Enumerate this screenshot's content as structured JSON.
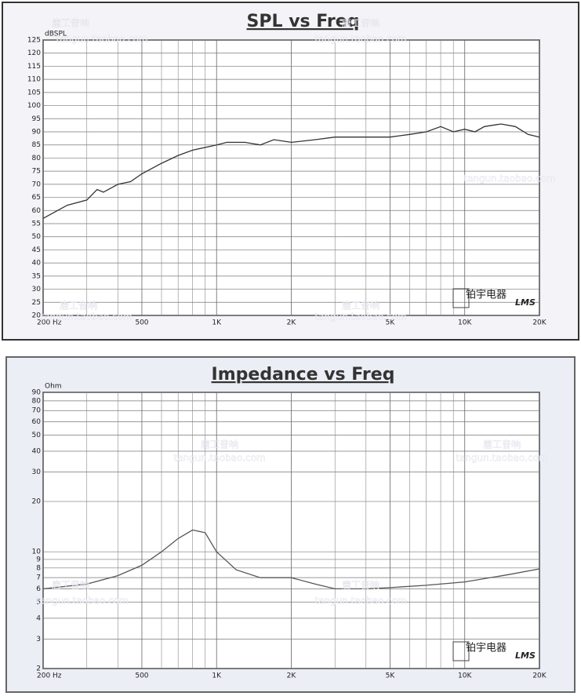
{
  "chart_data": [
    {
      "type": "line",
      "title": "SPL vs Freq",
      "y_label": "dBSPL",
      "xscale": "log",
      "yscale": "linear",
      "grid": true,
      "xlim": [
        200,
        20000
      ],
      "xticks": [
        {
          "value": 200,
          "label": "200 Hz"
        },
        500,
        {
          "value": 1000,
          "label": "1K"
        },
        {
          "value": 2000,
          "label": "2K"
        },
        {
          "value": 5000,
          "label": "5K"
        },
        {
          "value": 10000,
          "label": "10K"
        },
        {
          "value": 20000,
          "label": "20K"
        }
      ],
      "x_minor_ticks": [
        300,
        400,
        600,
        700,
        800,
        900,
        3000,
        4000,
        6000,
        7000,
        8000,
        9000
      ],
      "ylim": [
        20,
        125
      ],
      "yticks": [
        20,
        25,
        30,
        35,
        40,
        45,
        50,
        55,
        60,
        65,
        70,
        75,
        80,
        85,
        90,
        95,
        100,
        105,
        110,
        115,
        120,
        125
      ],
      "x": [
        200,
        250,
        300,
        330,
        350,
        400,
        450,
        500,
        600,
        700,
        800,
        1000,
        1100,
        1300,
        1500,
        1700,
        2000,
        2500,
        3000,
        3500,
        4000,
        5000,
        6000,
        7000,
        8000,
        9000,
        10000,
        11000,
        12000,
        14000,
        16000,
        18000,
        20000
      ],
      "series": [
        {
          "name": "SPL",
          "color": "#333333",
          "values": [
            57,
            62,
            64,
            68,
            67,
            70,
            71,
            74,
            78,
            81,
            83,
            85,
            86,
            86,
            85,
            87,
            86,
            87,
            88,
            88,
            88,
            88,
            89,
            90,
            92,
            90,
            91,
            90,
            92,
            93,
            92,
            89,
            88
          ]
        }
      ],
      "annotations": [
        "唐工音响",
        "tangun.taobao.com",
        "铂宇电器",
        "LMS"
      ]
    },
    {
      "type": "line",
      "title": "Impedance vs Freq",
      "y_label": "Ohm",
      "xscale": "log",
      "yscale": "log",
      "grid": true,
      "xlim": [
        200,
        20000
      ],
      "xticks": [
        {
          "value": 200,
          "label": "200 Hz"
        },
        500,
        {
          "value": 1000,
          "label": "1K"
        },
        {
          "value": 2000,
          "label": "2K"
        },
        {
          "value": 5000,
          "label": "5K"
        },
        {
          "value": 10000,
          "label": "10K"
        },
        {
          "value": 20000,
          "label": "20K"
        }
      ],
      "x_minor_ticks": [
        300,
        400,
        600,
        700,
        800,
        900,
        3000,
        4000,
        6000,
        7000,
        8000,
        9000
      ],
      "ylim": [
        2,
        90
      ],
      "yticks": [
        2,
        3,
        4,
        5,
        6,
        7,
        8,
        9,
        10,
        20,
        30,
        40,
        50,
        60,
        70,
        80,
        90
      ],
      "x": [
        200,
        300,
        400,
        500,
        600,
        700,
        800,
        900,
        1000,
        1200,
        1500,
        2000,
        2500,
        3000,
        4000,
        5000,
        7000,
        10000,
        15000,
        20000
      ],
      "series": [
        {
          "name": "Impedance",
          "color": "#555555",
          "values": [
            6.0,
            6.4,
            7.2,
            8.3,
            10.0,
            12,
            13.5,
            13,
            10,
            7.8,
            7.0,
            7.0,
            6.4,
            6.0,
            6.0,
            6.1,
            6.3,
            6.6,
            7.3,
            7.9
          ]
        }
      ],
      "annotations": [
        "唐工音响",
        "tangun.taobao.com",
        "铂宇电器",
        "LMS"
      ]
    }
  ]
}
